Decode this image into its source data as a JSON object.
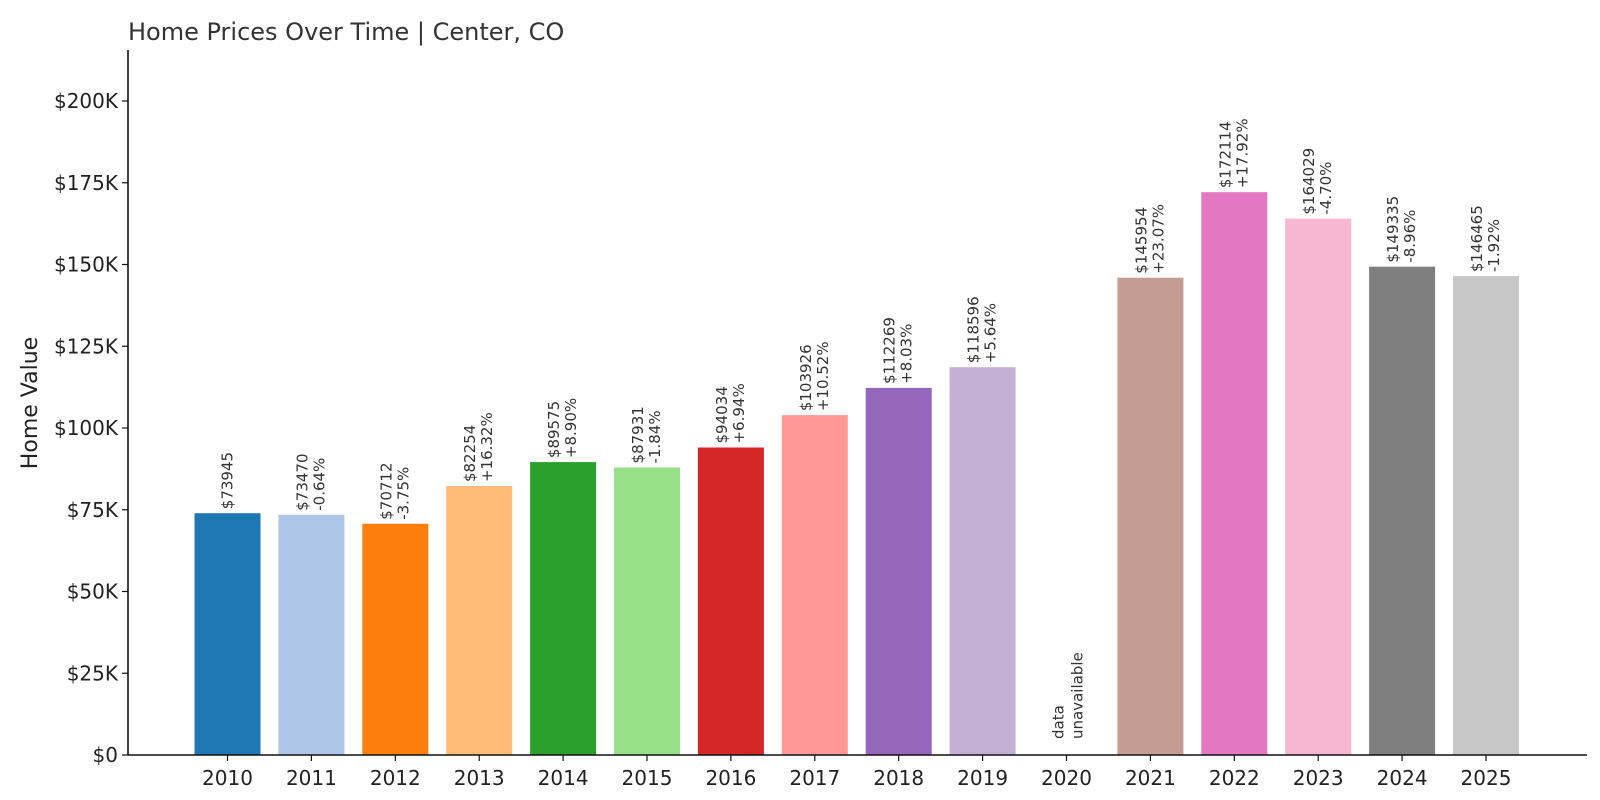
{
  "chart_data": {
    "type": "bar",
    "title": "Home Prices Over Time | Center, CO",
    "xlabel": "",
    "ylabel": "Home Value",
    "ylim": [
      0,
      215000
    ],
    "yticks": [
      0,
      25000,
      50000,
      75000,
      100000,
      125000,
      150000,
      175000,
      200000
    ],
    "ytick_labels": [
      "$0",
      "$25K",
      "$50K",
      "$75K",
      "$100K",
      "$125K",
      "$150K",
      "$175K",
      "$200K"
    ],
    "grid": false,
    "legend": "none",
    "categories": [
      "2010",
      "2011",
      "2012",
      "2013",
      "2014",
      "2015",
      "2016",
      "2017",
      "2018",
      "2019",
      "2020",
      "2021",
      "2022",
      "2023",
      "2024",
      "2025"
    ],
    "values": [
      73945,
      73470,
      70712,
      82254,
      89575,
      87931,
      94034,
      103926,
      112269,
      118596,
      null,
      145954,
      172114,
      164029,
      149335,
      146465
    ],
    "value_labels": [
      "$73945",
      "$73470",
      "$70712",
      "$82254",
      "$89575",
      "$87931",
      "$94034",
      "$103926",
      "$112269",
      "$118596",
      "",
      "$145954",
      "$172114",
      "$164029",
      "$149335",
      "$146465"
    ],
    "change_labels": [
      "",
      "-0.64%",
      "-3.75%",
      "+16.32%",
      "+8.90%",
      "-1.84%",
      "+6.94%",
      "+10.52%",
      "+8.03%",
      "+5.64%",
      "",
      "+23.07%",
      "+17.92%",
      "-4.70%",
      "-8.96%",
      "-1.92%"
    ],
    "missing_label": [
      "data",
      "unavailable"
    ],
    "colors": [
      "#1f77b4",
      "#aec7e8",
      "#ff7f0e",
      "#ffbb78",
      "#2ca02c",
      "#98df8a",
      "#d62728",
      "#ff9896",
      "#9467bd",
      "#c5b0d5",
      "#8c564b",
      "#c49c94",
      "#e377c2",
      "#f7b6d2",
      "#7f7f7f",
      "#c7c7c7"
    ]
  }
}
